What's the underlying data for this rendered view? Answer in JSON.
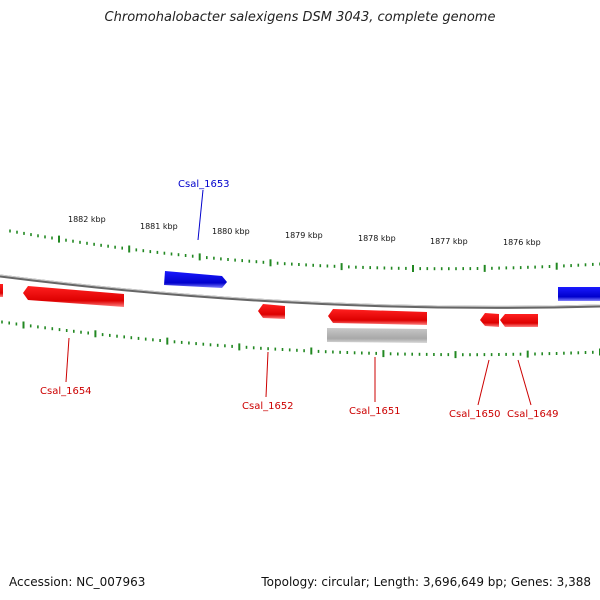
{
  "title": "Chromohalobacter salexigens DSM 3043, complete genome",
  "footer": {
    "accession": "Accession: NC_007963",
    "topology": "Topology: circular; Length: 3,696,649 bp; Genes: 3,388"
  },
  "colors": {
    "forward_gene": "#0000dd",
    "reverse_gene": "#ee0000",
    "other_feature": "#b0b0b0",
    "ticks": "#228822",
    "backbone": "#777777"
  },
  "scale": {
    "unit": "kbp",
    "labels": [
      "1882 kbp",
      "1881 kbp",
      "1880 kbp",
      "1879 kbp",
      "1878 kbp",
      "1877 kbp",
      "1876 kbp"
    ]
  },
  "genes": [
    {
      "label": "Csal_1653",
      "strand": "forward"
    },
    {
      "label": "Csal_1654",
      "strand": "reverse"
    },
    {
      "label": "Csal_1652",
      "strand": "reverse"
    },
    {
      "label": "Csal_1651",
      "strand": "reverse"
    },
    {
      "label": "Csal_1650",
      "strand": "reverse"
    },
    {
      "label": "Csal_1649",
      "strand": "reverse"
    }
  ]
}
